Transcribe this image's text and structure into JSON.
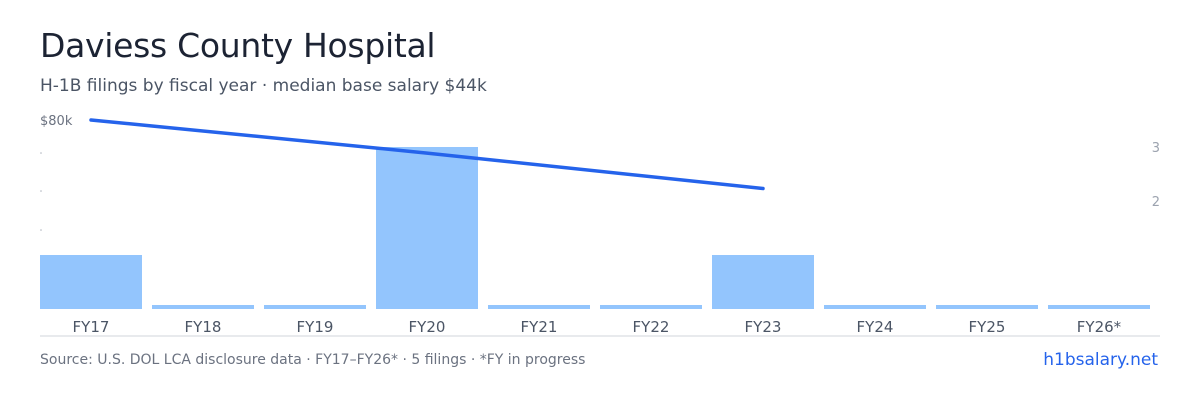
{
  "header": {
    "title": "Daviess County Hospital",
    "subtitle": "H-1B filings by fiscal year · median base salary $44k"
  },
  "footer": {
    "source": "Source: U.S. DOL LCA disclosure data · FY17–FY26* · 5 filings · *FY in progress",
    "brand": "h1bsalary.net"
  },
  "colors": {
    "bar": "#93c5fd",
    "line": "#2563eb",
    "axis_text": "#6b7280",
    "right_axis_text": "#9ca3af",
    "baseline": "#d1d5db"
  },
  "chart_data": {
    "type": "bar",
    "categories": [
      "FY17",
      "FY18",
      "FY19",
      "FY20",
      "FY21",
      "FY22",
      "FY23",
      "FY24",
      "FY25",
      "FY26*"
    ],
    "series": [
      {
        "type": "bar",
        "axis": "right",
        "values": [
          1,
          0,
          0,
          3,
          0,
          0,
          1,
          0,
          0,
          0
        ]
      },
      {
        "type": "line",
        "axis": "left",
        "values": [
          80000,
          null,
          null,
          66000,
          null,
          null,
          51000,
          null,
          null,
          null
        ]
      }
    ],
    "left_axis": {
      "ylim": [
        0,
        80000
      ],
      "tick_label": "$80k"
    },
    "right_axis": {
      "ylim": [
        0,
        3.5
      ],
      "ticks": [
        "3",
        "2"
      ]
    },
    "grid": false,
    "legend": "none"
  }
}
